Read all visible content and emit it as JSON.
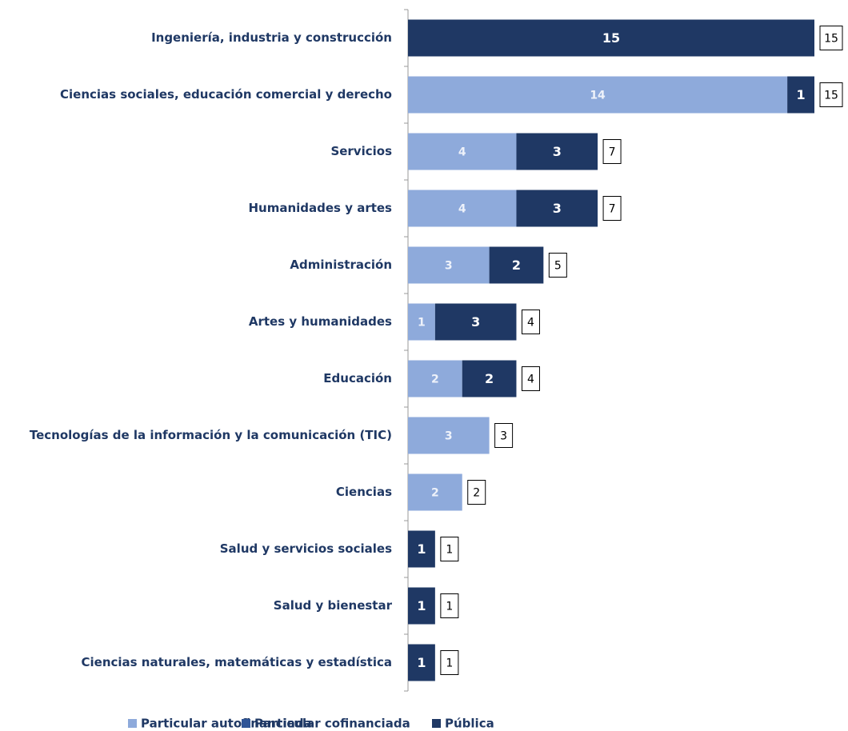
{
  "chart_data": {
    "type": "stacked-bar-horizontal",
    "categories": [
      "Ingeniería, industria y construcción",
      "Ciencias sociales, educación comercial y derecho",
      "Servicios",
      "Humanidades y artes",
      "Administración",
      "Artes y humanidades",
      "Educación",
      "Tecnologías de la información y la comunicación (TIC)",
      "Ciencias",
      "Salud y servicios sociales",
      "Salud y bienestar",
      "Ciencias naturales, matemáticas y estadística"
    ],
    "series": [
      {
        "name": "Particular autofinanciada",
        "color": "#8eaadb",
        "values": [
          null,
          14,
          4,
          4,
          3,
          1,
          2,
          3,
          2,
          null,
          null,
          null
        ]
      },
      {
        "name": "Particular cofinanciada",
        "color": "#2f5597",
        "values": [
          null,
          null,
          null,
          null,
          null,
          null,
          null,
          null,
          null,
          null,
          null,
          null
        ]
      },
      {
        "name": "Pública",
        "color": "#1f3864",
        "values": [
          15,
          1,
          3,
          3,
          2,
          3,
          2,
          null,
          null,
          1,
          1,
          1
        ]
      }
    ],
    "totals": [
      15,
      15,
      7,
      7,
      5,
      4,
      4,
      3,
      2,
      1,
      1,
      1
    ],
    "legend": "bottom"
  }
}
